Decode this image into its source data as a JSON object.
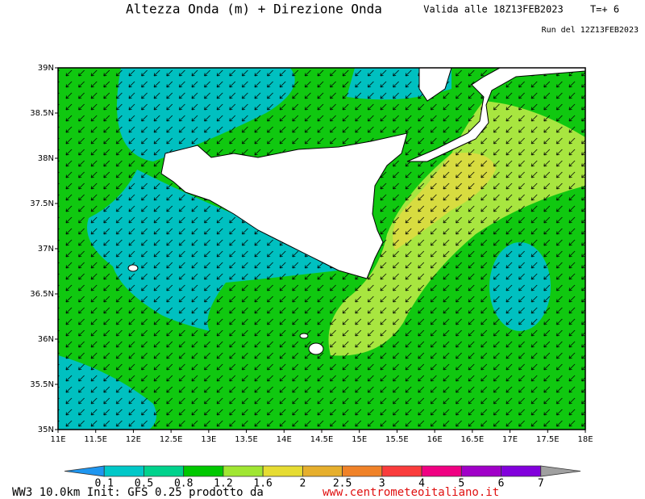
{
  "map": {
    "title": "Altezza Onda (m) + Direzione Onda",
    "valid": "Valida alle 18Z13FEB2023",
    "step": "T=+ 6",
    "run": "Run del 12Z13FEB2023",
    "lat_labels": [
      "39N",
      "38.5N",
      "38N",
      "37.5N",
      "37N",
      "36.5N",
      "36N",
      "35.5N",
      "35N"
    ],
    "lon_labels": [
      "11E",
      "11.5E",
      "12E",
      "12.5E",
      "13E",
      "13.5E",
      "14E",
      "14.5E",
      "15E",
      "15.5E",
      "16E",
      "16.5E",
      "17E",
      "17.5E",
      "18E"
    ],
    "colorbar": {
      "labels": [
        0.1,
        0.5,
        0.8,
        1.2,
        1.6,
        2,
        2.5,
        3,
        4,
        5,
        6,
        7
      ],
      "colors": [
        "#1e96f0",
        "#00c8c8",
        "#00d28c",
        "#00c800",
        "#a0e632",
        "#e6dc32",
        "#e6af2d",
        "#f08228",
        "#fa3c3c",
        "#f00082",
        "#a000c8",
        "#8200dc",
        "#a0a0a0"
      ]
    },
    "footer": "WW3 10.0km Init: GFS 0.25 prodotto da",
    "url": "www.centrometeoitaliano.it"
  }
}
